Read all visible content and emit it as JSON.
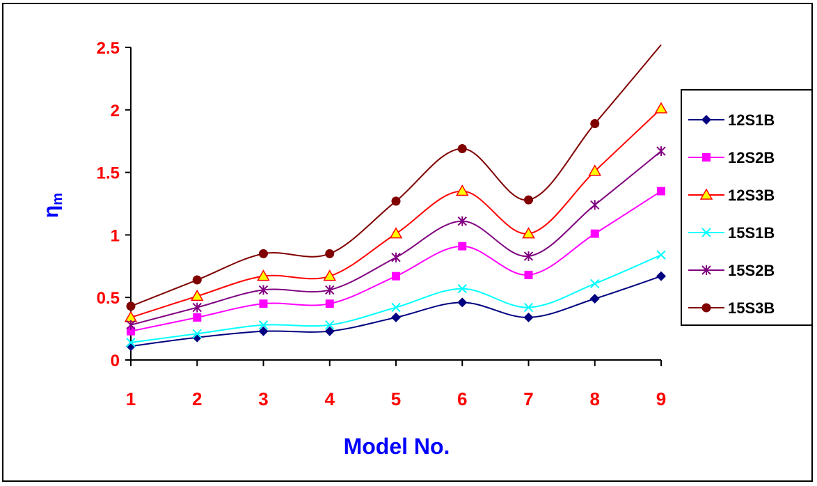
{
  "chart_data": {
    "type": "line",
    "title": "",
    "xlabel": "Model No.",
    "ylabel_main": "η",
    "ylabel_sub": "m",
    "categories": [
      1,
      2,
      3,
      4,
      5,
      6,
      7,
      8,
      9
    ],
    "ylim": [
      0,
      2.5
    ],
    "yticks": [
      0,
      0.5,
      1,
      1.5,
      2,
      2.5
    ],
    "grid": false,
    "legend": "right",
    "series": [
      {
        "name": "12S1B",
        "color": "#000080",
        "marker": "diamond",
        "values": [
          0.11,
          0.18,
          0.23,
          0.23,
          0.34,
          0.46,
          0.34,
          0.49,
          0.67
        ]
      },
      {
        "name": "12S2B",
        "color": "#ff00ff",
        "marker": "square",
        "values": [
          0.23,
          0.34,
          0.45,
          0.45,
          0.67,
          0.91,
          0.68,
          1.01,
          1.35
        ]
      },
      {
        "name": "12S3B",
        "color": "#ff0000",
        "marker": "triangle",
        "values": [
          0.34,
          0.51,
          0.67,
          0.67,
          1.01,
          1.35,
          1.01,
          1.51,
          2.01
        ]
      },
      {
        "name": "15S1B",
        "color": "#00ffff",
        "marker": "x",
        "values": [
          0.14,
          0.21,
          0.28,
          0.28,
          0.42,
          0.57,
          0.42,
          0.61,
          0.84
        ]
      },
      {
        "name": "15S2B",
        "color": "#800080",
        "marker": "star",
        "values": [
          0.28,
          0.42,
          0.56,
          0.56,
          0.82,
          1.11,
          0.83,
          1.24,
          1.67
        ]
      },
      {
        "name": "15S3B",
        "color": "#800000",
        "marker": "circle",
        "values": [
          0.43,
          0.64,
          0.85,
          0.85,
          1.27,
          1.69,
          1.28,
          1.89,
          2.52
        ]
      }
    ]
  }
}
